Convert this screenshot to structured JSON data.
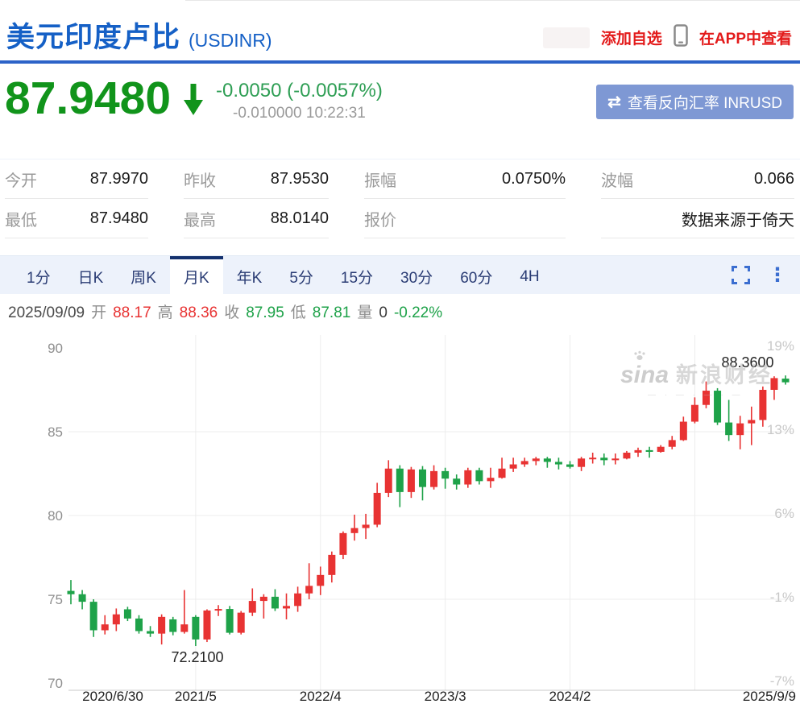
{
  "header": {
    "title": "美元印度卢比",
    "symbol": "(USDINR)",
    "add_watchlist": "添加自选",
    "view_in_app": "在APP中查看"
  },
  "quote": {
    "price": "87.9480",
    "direction": "down",
    "change": "-0.0050 (-0.0057%)",
    "change_detail": "-0.010000 10:22:31",
    "reverse_button": "查看反向汇率 INRUSD",
    "swap_icon": "⇄"
  },
  "stats": {
    "rows": [
      [
        {
          "label": "今开",
          "value": "87.9970"
        },
        {
          "label": "昨收",
          "value": "87.9530"
        },
        {
          "label": "振幅",
          "value": "0.0750%"
        },
        {
          "label": "波幅",
          "value": "0.066"
        }
      ],
      [
        {
          "label": "最低",
          "value": "87.9480"
        },
        {
          "label": "最高",
          "value": "88.0140"
        },
        {
          "label": "报价",
          "value": ""
        },
        {
          "label": "",
          "value": "数据来源于倚天"
        }
      ]
    ]
  },
  "tabs": {
    "items": [
      "1分",
      "日K",
      "周K",
      "月K",
      "年K",
      "5分",
      "15分",
      "30分",
      "60分",
      "4H"
    ],
    "active": "月K"
  },
  "ohlc_bar": {
    "date": "2025/09/09",
    "open_label": "开",
    "open": "88.17",
    "high_label": "高",
    "high": "88.36",
    "close_label": "收",
    "close": "87.95",
    "low_label": "低",
    "low": "87.81",
    "vol_label": "量",
    "vol": "0",
    "pct": "-0.22%"
  },
  "watermark": {
    "logo": "sina",
    "name": "新浪财经",
    "tagline": "— · — · — · —"
  },
  "colors": {
    "title_blue": "#1560c6",
    "link_red": "#e31a1a",
    "price_green": "#11941b",
    "button_bg": "#7e98d4",
    "candle_up_red": "#e83333",
    "candle_down_green": "#1ea249"
  },
  "chart_data": {
    "type": "candlestick",
    "title": "USDINR 月K",
    "ylim": [
      70,
      90
    ],
    "y_ticks": [
      "90",
      "85",
      "80",
      "75",
      "70"
    ],
    "y_tick_values": [
      90,
      85,
      80,
      75,
      70
    ],
    "right_ticks": [
      "19%",
      "13%",
      "6%",
      "-1%",
      "-7%"
    ],
    "x_ticks": [
      "2020/6/30",
      "2021/5",
      "2022/4",
      "2023/3",
      "2024/2",
      "2025/9/9"
    ],
    "grid": true,
    "annotations": {
      "high_label": "88.3600",
      "low_label": "72.2100"
    },
    "up_color": "#e83333",
    "down_color": "#1ea249",
    "candles": [
      [
        "2020/6",
        75.5,
        76.15,
        74.7,
        75.3
      ],
      [
        "2020/7",
        75.3,
        75.55,
        74.4,
        74.85
      ],
      [
        "2020/8",
        74.85,
        75.0,
        72.75,
        73.15
      ],
      [
        "2020/9",
        73.15,
        74.05,
        72.9,
        73.5
      ],
      [
        "2020/10",
        73.5,
        74.45,
        73.1,
        74.1
      ],
      [
        "2020/11",
        74.4,
        74.55,
        73.7,
        73.85
      ],
      [
        "2020/12",
        73.85,
        74.05,
        72.95,
        73.1
      ],
      [
        "2021/1",
        73.1,
        73.4,
        72.75,
        72.95
      ],
      [
        "2021/2",
        72.95,
        74.1,
        72.3,
        73.95
      ],
      [
        "2021/3",
        73.8,
        73.95,
        72.85,
        73.05
      ],
      [
        "2021/4",
        73.05,
        75.55,
        72.95,
        73.5
      ],
      [
        "2021/5",
        73.95,
        74.05,
        72.21,
        72.6
      ],
      [
        "2021/6",
        72.6,
        74.4,
        72.45,
        74.33
      ],
      [
        "2021/7",
        74.33,
        74.65,
        74.0,
        74.42
      ],
      [
        "2021/8",
        74.42,
        74.6,
        72.9,
        73.0
      ],
      [
        "2021/9",
        73.0,
        74.3,
        72.9,
        74.2
      ],
      [
        "2021/10",
        74.2,
        75.65,
        74.0,
        74.9
      ],
      [
        "2021/11",
        74.9,
        75.3,
        73.85,
        75.15
      ],
      [
        "2021/12",
        75.15,
        75.6,
        74.3,
        74.45
      ],
      [
        "2022/1",
        74.45,
        75.35,
        73.8,
        74.6
      ],
      [
        "2022/2",
        74.6,
        75.75,
        74.25,
        75.35
      ],
      [
        "2022/3",
        75.35,
        77.15,
        75.0,
        75.8
      ],
      [
        "2022/4",
        75.8,
        76.95,
        75.25,
        76.45
      ],
      [
        "2022/5",
        76.45,
        77.85,
        76.0,
        77.65
      ],
      [
        "2022/6",
        77.65,
        79.05,
        77.4,
        78.95
      ],
      [
        "2022/7",
        78.95,
        80.05,
        78.5,
        79.25
      ],
      [
        "2022/8",
        79.25,
        80.1,
        78.6,
        79.45
      ],
      [
        "2022/9",
        79.45,
        81.95,
        79.3,
        81.35
      ],
      [
        "2022/10",
        81.35,
        83.3,
        81.1,
        82.8
      ],
      [
        "2022/11",
        82.8,
        83.0,
        80.5,
        81.4
      ],
      [
        "2022/12",
        81.4,
        82.9,
        81.05,
        82.75
      ],
      [
        "2023/1",
        82.75,
        82.95,
        80.9,
        81.7
      ],
      [
        "2023/2",
        81.7,
        83.0,
        81.55,
        82.65
      ],
      [
        "2023/3",
        82.65,
        82.85,
        81.6,
        82.2
      ],
      [
        "2023/4",
        82.2,
        82.45,
        81.55,
        81.85
      ],
      [
        "2023/5",
        81.85,
        82.85,
        81.65,
        82.7
      ],
      [
        "2023/6",
        82.7,
        82.85,
        81.85,
        82.05
      ],
      [
        "2023/7",
        82.05,
        82.85,
        81.65,
        82.25
      ],
      [
        "2023/8",
        82.25,
        83.45,
        82.2,
        82.8
      ],
      [
        "2023/9",
        82.8,
        83.45,
        82.6,
        83.05
      ],
      [
        "2023/10",
        83.05,
        83.45,
        82.9,
        83.25
      ],
      [
        "2023/11",
        83.25,
        83.5,
        83.0,
        83.4
      ],
      [
        "2023/12",
        83.4,
        83.5,
        82.85,
        83.2
      ],
      [
        "2024/1",
        83.2,
        83.45,
        82.75,
        83.05
      ],
      [
        "2024/2",
        83.05,
        83.25,
        82.8,
        82.9
      ],
      [
        "2024/3",
        82.9,
        83.5,
        82.65,
        83.4
      ],
      [
        "2024/4",
        83.4,
        83.75,
        83.1,
        83.45
      ],
      [
        "2024/5",
        83.45,
        83.7,
        83.0,
        83.3
      ],
      [
        "2024/6",
        83.3,
        83.7,
        83.05,
        83.4
      ],
      [
        "2024/7",
        83.4,
        83.85,
        83.35,
        83.75
      ],
      [
        "2024/8",
        83.75,
        84.05,
        83.5,
        83.9
      ],
      [
        "2024/9",
        83.9,
        84.1,
        83.45,
        83.8
      ],
      [
        "2024/10",
        83.8,
        84.2,
        83.75,
        84.1
      ],
      [
        "2024/11",
        84.1,
        84.75,
        83.95,
        84.5
      ],
      [
        "2024/12",
        84.5,
        85.9,
        84.45,
        85.6
      ],
      [
        "2025/1",
        85.6,
        87.05,
        85.5,
        86.6
      ],
      [
        "2025/2",
        86.6,
        88.0,
        86.4,
        87.45
      ],
      [
        "2025/3",
        87.45,
        87.6,
        85.4,
        85.55
      ],
      [
        "2025/4",
        85.55,
        86.9,
        84.45,
        84.8
      ],
      [
        "2025/5",
        84.8,
        85.95,
        83.95,
        85.5
      ],
      [
        "2025/6",
        85.5,
        86.5,
        84.2,
        85.7
      ],
      [
        "2025/7",
        85.7,
        87.7,
        85.3,
        87.5
      ],
      [
        "2025/8",
        87.5,
        88.31,
        86.9,
        88.2
      ],
      [
        "2025/9",
        88.17,
        88.36,
        87.81,
        87.95
      ]
    ]
  }
}
